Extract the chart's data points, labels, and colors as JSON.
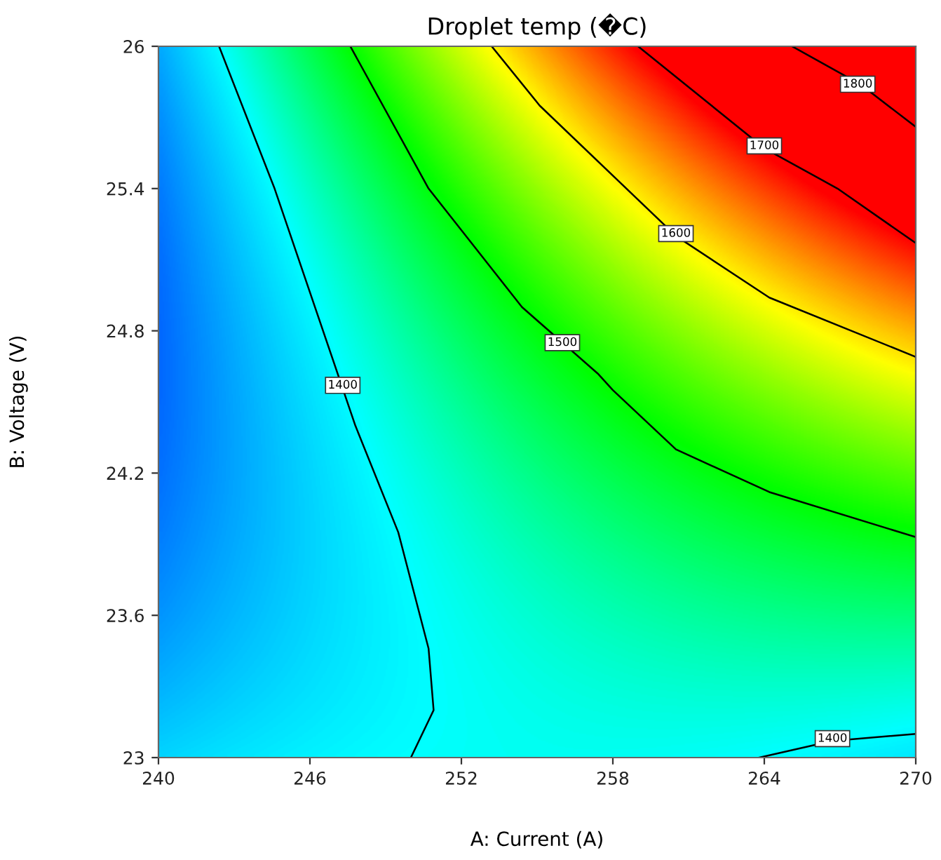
{
  "chart_data": {
    "type": "line",
    "title": "Droplet temp (�C)",
    "xlabel": "A: Current (A)",
    "ylabel": "B: Voltage (V)",
    "xlim": [
      240,
      270
    ],
    "ylim": [
      23,
      26
    ],
    "xticks": [
      240,
      246,
      252,
      258,
      264,
      270
    ],
    "yticks": [
      23,
      23.6,
      24.2,
      24.8,
      25.4,
      26
    ],
    "grid": false,
    "legend": false,
    "marker": "none",
    "line_style": "solid",
    "series": [
      {
        "color": "#000000",
        "x": [
          242.4,
          244.6,
          247.8,
          249.5,
          250.7,
          250.9,
          250.0
        ],
        "values": [
          26.0,
          25.4,
          24.4,
          23.95,
          23.46,
          23.2,
          23.0
        ]
      },
      {
        "color": "#000000",
        "x": [
          263.8,
          266.7,
          270.0
        ],
        "values": [
          23.0,
          23.07,
          23.1
        ]
      },
      {
        "color": "#000000",
        "x": [
          247.6,
          250.7,
          254.4,
          257.4,
          258.0,
          260.5,
          264.2,
          270.0
        ],
        "values": [
          26.0,
          25.4,
          24.9,
          24.62,
          24.55,
          24.3,
          24.12,
          23.93
        ]
      },
      {
        "color": "#000000",
        "x": [
          253.2,
          255.1,
          260.5,
          264.2,
          270.0
        ],
        "values": [
          26.0,
          25.75,
          25.2,
          24.94,
          24.69
        ]
      },
      {
        "color": "#000000",
        "x": [
          259.0,
          264.0,
          266.9,
          270.0
        ],
        "values": [
          26.0,
          25.57,
          25.4,
          25.17
        ]
      },
      {
        "color": "#000000",
        "x": [
          265.1,
          267.8,
          270.0
        ],
        "values": [
          26.0,
          25.84,
          25.66
        ]
      }
    ],
    "annotations": [
      {
        "text": "1400",
        "x": 247.3,
        "y": 24.57
      },
      {
        "text": "1400",
        "x": 266.7,
        "y": 23.08
      },
      {
        "text": "1500",
        "x": 256.0,
        "y": 24.75
      },
      {
        "text": "1600",
        "x": 260.5,
        "y": 25.21
      },
      {
        "text": "1700",
        "x": 264.0,
        "y": 25.58
      },
      {
        "text": "1800",
        "x": 267.7,
        "y": 25.84
      }
    ]
  }
}
